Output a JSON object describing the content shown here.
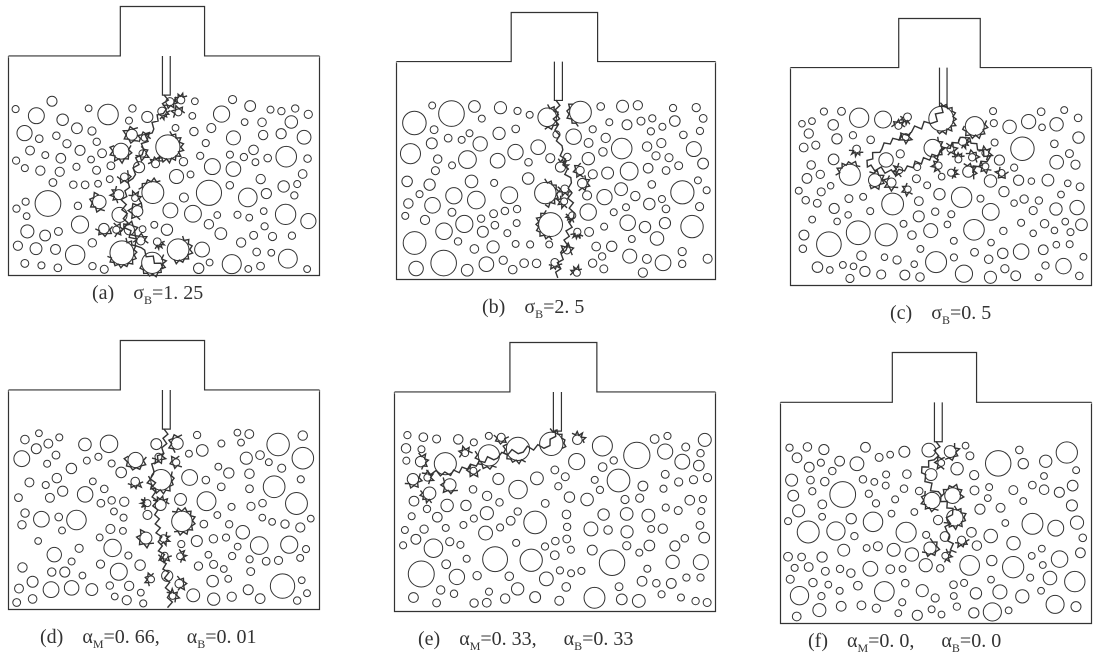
{
  "figure": {
    "panels": [
      {
        "id": "a",
        "tag": "(a)",
        "terms": [
          {
            "sym": "σ",
            "sub": "B",
            "val": "=1. 25"
          }
        ]
      },
      {
        "id": "b",
        "tag": "(b)",
        "terms": [
          {
            "sym": "σ",
            "sub": "B",
            "val": "=2. 5"
          }
        ]
      },
      {
        "id": "c",
        "tag": "(c)",
        "terms": [
          {
            "sym": "σ",
            "sub": "B",
            "val": "=0. 5"
          }
        ]
      },
      {
        "id": "d",
        "tag": "(d)",
        "terms": [
          {
            "sym": "α",
            "sub": "M",
            "val": "=0. 66,"
          },
          {
            "sym": "α",
            "sub": "B",
            "val": "=0. 01"
          }
        ]
      },
      {
        "id": "e",
        "tag": "(e)",
        "terms": [
          {
            "sym": "α",
            "sub": "M",
            "val": "=0. 33,"
          },
          {
            "sym": "α",
            "sub": "B",
            "val": "=0. 33"
          }
        ]
      },
      {
        "id": "f",
        "tag": "(f)",
        "terms": [
          {
            "sym": "α",
            "sub": "M",
            "val": "=0. 0,"
          },
          {
            "sym": "α",
            "sub": "B",
            "val": "=0. 0"
          }
        ]
      }
    ]
  }
}
